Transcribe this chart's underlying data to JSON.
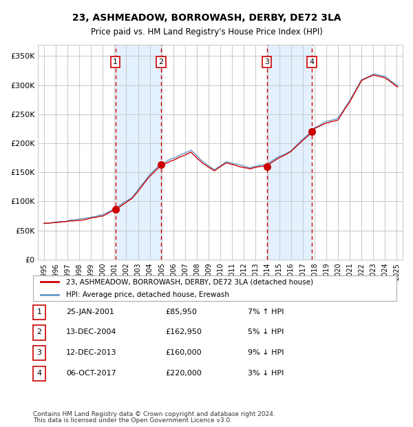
{
  "title": "23, ASHMEADOW, BORROWASH, DERBY, DE72 3LA",
  "subtitle": "Price paid vs. HM Land Registry's House Price Index (HPI)",
  "sale_dates": [
    "2001-01-25",
    "2004-12-13",
    "2013-12-12",
    "2017-10-06"
  ],
  "sale_prices": [
    85950,
    162950,
    160000,
    220000
  ],
  "sale_labels": [
    "1",
    "2",
    "3",
    "4"
  ],
  "sale_info": [
    "25-JAN-2001",
    "£85,950",
    "7% ↑ HPI",
    "13-DEC-2004",
    "£162,950",
    "5% ↓ HPI",
    "12-DEC-2013",
    "£160,000",
    "9% ↓ HPI",
    "06-OCT-2017",
    "£220,000",
    "3% ↓ HPI"
  ],
  "ylabel": "",
  "ylim": [
    0,
    360000
  ],
  "yticks": [
    0,
    50000,
    100000,
    150000,
    200000,
    250000,
    300000,
    350000
  ],
  "ytick_labels": [
    "£0",
    "£50K",
    "£100K",
    "£150K",
    "£200K",
    "£250K",
    "£300K",
    "£350K"
  ],
  "hpi_color": "#6699CC",
  "price_color": "#CC0000",
  "dot_color": "#CC0000",
  "vline_color": "#CC0000",
  "shade_color": "#DDEEFF",
  "grid_color": "#CCCCCC",
  "background_color": "#FFFFFF",
  "legend_line1": "23, ASHMEADOW, BORROWASH, DERBY, DE72 3LA (detached house)",
  "legend_line2": "HPI: Average price, detached house, Erewash",
  "footer1": "Contains HM Land Registry data © Crown copyright and database right 2024.",
  "footer2": "This data is licensed under the Open Government Licence v3.0."
}
